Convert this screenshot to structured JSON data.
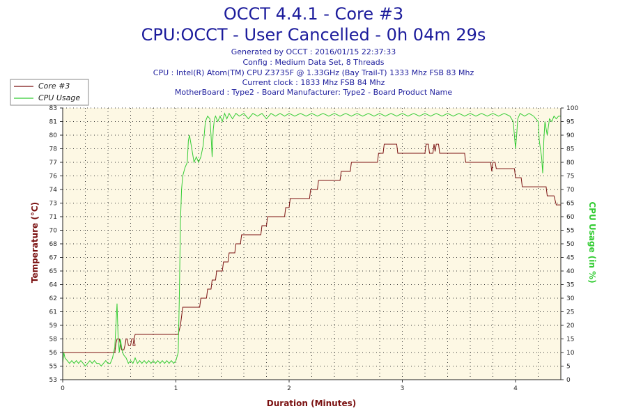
{
  "title": "OCCT 4.4.1 - Core #3",
  "subtitle": "CPU:OCCT - User Cancelled - 0h 04m 29s",
  "info_lines": [
    "Generated by OCCT : 2016/01/15 22:37:33",
    "Config : Medium Data Set, 8 Threads",
    "CPU : Intel(R) Atom(TM) CPU Z3735F @ 1.33GHz (Bay Trail-T) 1333 Mhz FSB 83 Mhz",
    "Current clock : 1833 Mhz FSB 84 Mhz",
    "MotherBoard : Type2 - Board Manufacturer: Type2 - Board Product Name"
  ],
  "colors": {
    "temperature": "#7a1010",
    "cpu_usage": "#33cc33",
    "plot_background": "#fdf8e4",
    "text": "#1c1c9c"
  },
  "chart_data": {
    "type": "line",
    "xlabel": "Duration (Minutes)",
    "ylabel": "Temperature (°C)",
    "y2label": "CPU Usage (in %)",
    "xlim": [
      0,
      4.4
    ],
    "ylim": [
      53,
      83
    ],
    "y2lim": [
      0,
      100
    ],
    "x_ticks": [
      "0",
      "1",
      "2",
      "3",
      "4"
    ],
    "y_ticks": [
      "53",
      "55",
      "56",
      "58",
      "59",
      "61",
      "62",
      "64",
      "65",
      "67",
      "68",
      "70",
      "71",
      "73",
      "74",
      "76",
      "77",
      "78",
      "80",
      "81",
      "83"
    ],
    "y2_ticks": [
      "0",
      "5",
      "10",
      "15",
      "20",
      "25",
      "30",
      "35",
      "40",
      "45",
      "50",
      "55",
      "60",
      "65",
      "70",
      "75",
      "80",
      "85",
      "90",
      "95",
      "100"
    ],
    "grid": true,
    "legend_position": "top-left",
    "series": [
      {
        "name": "Core #3",
        "axis": "left",
        "points": [
          [
            0.0,
            56
          ],
          [
            0.46,
            56
          ],
          [
            0.47,
            57
          ],
          [
            0.48,
            57.5
          ],
          [
            0.5,
            57.5
          ],
          [
            0.51,
            56.8
          ],
          [
            0.52,
            56.3
          ],
          [
            0.54,
            56.3
          ],
          [
            0.55,
            56.8
          ],
          [
            0.56,
            57.5
          ],
          [
            0.57,
            57.5
          ],
          [
            0.58,
            56.8
          ],
          [
            0.6,
            56.8
          ],
          [
            0.61,
            57.5
          ],
          [
            0.63,
            57.5
          ],
          [
            0.64,
            56.8
          ],
          [
            0.62,
            56.8
          ],
          [
            0.63,
            57.5
          ],
          [
            0.64,
            58
          ],
          [
            1.02,
            58
          ],
          [
            1.04,
            59
          ],
          [
            1.06,
            61
          ],
          [
            1.21,
            61
          ],
          [
            1.22,
            62
          ],
          [
            1.27,
            62
          ],
          [
            1.28,
            63
          ],
          [
            1.31,
            63
          ],
          [
            1.32,
            64
          ],
          [
            1.35,
            64
          ],
          [
            1.36,
            65
          ],
          [
            1.41,
            65
          ],
          [
            1.42,
            66
          ],
          [
            1.46,
            66
          ],
          [
            1.47,
            67
          ],
          [
            1.52,
            67
          ],
          [
            1.53,
            68
          ],
          [
            1.57,
            68
          ],
          [
            1.58,
            69
          ],
          [
            1.75,
            69
          ],
          [
            1.76,
            70
          ],
          [
            1.8,
            70
          ],
          [
            1.81,
            71
          ],
          [
            1.96,
            71
          ],
          [
            1.97,
            72
          ],
          [
            2.0,
            72
          ],
          [
            2.01,
            73
          ],
          [
            2.18,
            73
          ],
          [
            2.19,
            74
          ],
          [
            2.25,
            74
          ],
          [
            2.26,
            75
          ],
          [
            2.45,
            75
          ],
          [
            2.46,
            76
          ],
          [
            2.54,
            76
          ],
          [
            2.55,
            77
          ],
          [
            2.78,
            77
          ],
          [
            2.79,
            78
          ],
          [
            2.83,
            78
          ],
          [
            2.84,
            79
          ],
          [
            2.95,
            79
          ],
          [
            2.96,
            78
          ],
          [
            3.2,
            78
          ],
          [
            3.21,
            79
          ],
          [
            3.23,
            79
          ],
          [
            3.24,
            78
          ],
          [
            3.27,
            78
          ],
          [
            3.28,
            79
          ],
          [
            3.29,
            78.2
          ],
          [
            3.3,
            79
          ],
          [
            3.32,
            79
          ],
          [
            3.33,
            78
          ],
          [
            3.55,
            78
          ],
          [
            3.56,
            77
          ],
          [
            3.78,
            77
          ],
          [
            3.79,
            76
          ],
          [
            3.8,
            77
          ],
          [
            3.82,
            77
          ],
          [
            3.83,
            76.3
          ],
          [
            3.99,
            76.3
          ],
          [
            4.0,
            75.3
          ],
          [
            4.05,
            75.3
          ],
          [
            4.06,
            74.3
          ],
          [
            4.27,
            74.3
          ],
          [
            4.28,
            73.3
          ],
          [
            4.34,
            73.3
          ],
          [
            4.36,
            72.3
          ],
          [
            4.4,
            72.3
          ]
        ]
      },
      {
        "name": "CPU Usage",
        "axis": "right",
        "points": [
          [
            0.0,
            6
          ],
          [
            0.01,
            10
          ],
          [
            0.02,
            8
          ],
          [
            0.04,
            7
          ],
          [
            0.06,
            6
          ],
          [
            0.08,
            7
          ],
          [
            0.1,
            6
          ],
          [
            0.12,
            7
          ],
          [
            0.14,
            6
          ],
          [
            0.16,
            7
          ],
          [
            0.18,
            6
          ],
          [
            0.2,
            5
          ],
          [
            0.22,
            6
          ],
          [
            0.24,
            7
          ],
          [
            0.26,
            6
          ],
          [
            0.28,
            7
          ],
          [
            0.3,
            6
          ],
          [
            0.32,
            6
          ],
          [
            0.34,
            5
          ],
          [
            0.36,
            6
          ],
          [
            0.38,
            7
          ],
          [
            0.4,
            6
          ],
          [
            0.42,
            6
          ],
          [
            0.44,
            8
          ],
          [
            0.46,
            12
          ],
          [
            0.47,
            20
          ],
          [
            0.48,
            28
          ],
          [
            0.49,
            15
          ],
          [
            0.5,
            10
          ],
          [
            0.51,
            15
          ],
          [
            0.52,
            12
          ],
          [
            0.53,
            10
          ],
          [
            0.54,
            9
          ],
          [
            0.56,
            8
          ],
          [
            0.58,
            6
          ],
          [
            0.6,
            7
          ],
          [
            0.62,
            6
          ],
          [
            0.64,
            8
          ],
          [
            0.66,
            6
          ],
          [
            0.68,
            7
          ],
          [
            0.7,
            6
          ],
          [
            0.72,
            7
          ],
          [
            0.74,
            6
          ],
          [
            0.76,
            7
          ],
          [
            0.78,
            6
          ],
          [
            0.8,
            7
          ],
          [
            0.82,
            6
          ],
          [
            0.84,
            7
          ],
          [
            0.86,
            6
          ],
          [
            0.88,
            7
          ],
          [
            0.9,
            6
          ],
          [
            0.92,
            7
          ],
          [
            0.94,
            6
          ],
          [
            0.96,
            7
          ],
          [
            0.98,
            6
          ],
          [
            1.0,
            7
          ],
          [
            1.02,
            10
          ],
          [
            1.03,
            30
          ],
          [
            1.04,
            58
          ],
          [
            1.05,
            70
          ],
          [
            1.06,
            75
          ],
          [
            1.08,
            78
          ],
          [
            1.1,
            80
          ],
          [
            1.11,
            88
          ],
          [
            1.12,
            90
          ],
          [
            1.14,
            85
          ],
          [
            1.16,
            80
          ],
          [
            1.18,
            82
          ],
          [
            1.2,
            80
          ],
          [
            1.22,
            82
          ],
          [
            1.24,
            86
          ],
          [
            1.25,
            90
          ],
          [
            1.26,
            95
          ],
          [
            1.28,
            97
          ],
          [
            1.3,
            96
          ],
          [
            1.31,
            90
          ],
          [
            1.32,
            82
          ],
          [
            1.33,
            92
          ],
          [
            1.34,
            96
          ],
          [
            1.35,
            97
          ],
          [
            1.37,
            95
          ],
          [
            1.39,
            97
          ],
          [
            1.41,
            95
          ],
          [
            1.43,
            98
          ],
          [
            1.45,
            96
          ],
          [
            1.47,
            98
          ],
          [
            1.5,
            96
          ],
          [
            1.53,
            98
          ],
          [
            1.56,
            97
          ],
          [
            1.6,
            98
          ],
          [
            1.64,
            96
          ],
          [
            1.68,
            98
          ],
          [
            1.72,
            97
          ],
          [
            1.76,
            98
          ],
          [
            1.8,
            96
          ],
          [
            1.84,
            98
          ],
          [
            1.88,
            97
          ],
          [
            1.92,
            98
          ],
          [
            1.96,
            97
          ],
          [
            2.0,
            98
          ],
          [
            2.05,
            97
          ],
          [
            2.1,
            98
          ],
          [
            2.15,
            97
          ],
          [
            2.2,
            98
          ],
          [
            2.25,
            97
          ],
          [
            2.3,
            98
          ],
          [
            2.35,
            97
          ],
          [
            2.4,
            98
          ],
          [
            2.45,
            97
          ],
          [
            2.5,
            98
          ],
          [
            2.55,
            97
          ],
          [
            2.6,
            98
          ],
          [
            2.65,
            97
          ],
          [
            2.7,
            98
          ],
          [
            2.75,
            97
          ],
          [
            2.8,
            98
          ],
          [
            2.85,
            97
          ],
          [
            2.9,
            98
          ],
          [
            2.95,
            97
          ],
          [
            3.0,
            98
          ],
          [
            3.05,
            97
          ],
          [
            3.1,
            98
          ],
          [
            3.15,
            97
          ],
          [
            3.2,
            98
          ],
          [
            3.25,
            97
          ],
          [
            3.3,
            98
          ],
          [
            3.35,
            97
          ],
          [
            3.4,
            98
          ],
          [
            3.45,
            97
          ],
          [
            3.5,
            98
          ],
          [
            3.55,
            97
          ],
          [
            3.6,
            98
          ],
          [
            3.65,
            97
          ],
          [
            3.7,
            98
          ],
          [
            3.75,
            97
          ],
          [
            3.8,
            98
          ],
          [
            3.85,
            97
          ],
          [
            3.9,
            98
          ],
          [
            3.95,
            97
          ],
          [
            3.98,
            95
          ],
          [
            4.0,
            85
          ],
          [
            4.01,
            90
          ],
          [
            4.02,
            96
          ],
          [
            4.04,
            98
          ],
          [
            4.08,
            97
          ],
          [
            4.12,
            98
          ],
          [
            4.16,
            97
          ],
          [
            4.2,
            95
          ],
          [
            4.21,
            88
          ],
          [
            4.22,
            85
          ],
          [
            4.23,
            82
          ],
          [
            4.24,
            76
          ],
          [
            4.25,
            88
          ],
          [
            4.26,
            95
          ],
          [
            4.28,
            90
          ],
          [
            4.3,
            96
          ],
          [
            4.32,
            95
          ],
          [
            4.34,
            97
          ],
          [
            4.36,
            96
          ],
          [
            4.38,
            97
          ],
          [
            4.4,
            97
          ]
        ]
      }
    ]
  }
}
